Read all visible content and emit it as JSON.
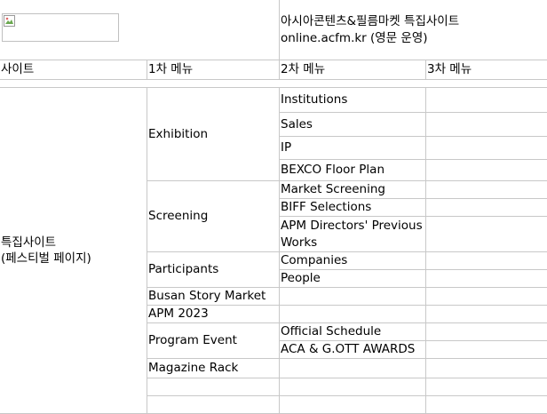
{
  "header": {
    "site_title": "아시아콘텐츠&필름마켓 특집사이트",
    "site_url_note": "online.acfm.kr (영문 운영)"
  },
  "columns": {
    "site": "사이트",
    "menu1": "1차 메뉴",
    "menu2": "2차 메뉴",
    "menu3": "3차 메뉴"
  },
  "site_group": {
    "line1": "특집사이트",
    "line2": "(페스티벌 페이지)"
  },
  "menu": [
    {
      "label": "Exhibition",
      "children": [
        "Institutions",
        "Sales",
        "IP",
        "BEXCO Floor Plan"
      ]
    },
    {
      "label": "Screening",
      "children": [
        "Market Screening",
        "BIFF Selections",
        "APM Directors' Previous Works"
      ]
    },
    {
      "label": "Participants",
      "children": [
        "Companies",
        "People"
      ]
    },
    {
      "label": "Busan Story Market",
      "children": []
    },
    {
      "label": "APM 2023",
      "children": []
    },
    {
      "label": "Program Event",
      "children": [
        "Official Schedule",
        "ACA & G.OTT AWARDS"
      ]
    },
    {
      "label": "Magazine Rack",
      "children": []
    }
  ]
}
